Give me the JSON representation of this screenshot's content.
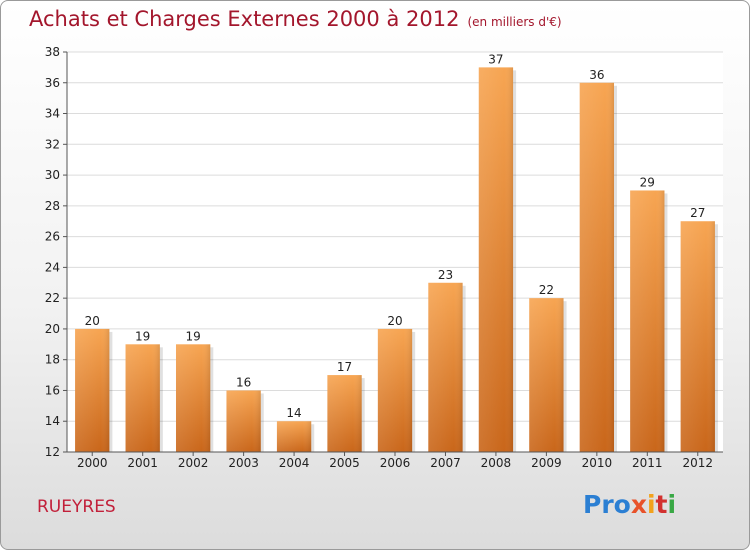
{
  "chart_data": {
    "type": "bar",
    "title": "Achats et Charges Externes 2000 à 2012",
    "unit_note": "(en milliers d'€)",
    "categories": [
      "2000",
      "2001",
      "2002",
      "2003",
      "2004",
      "2005",
      "2006",
      "2007",
      "2008",
      "2009",
      "2010",
      "2011",
      "2012"
    ],
    "values": [
      20,
      19,
      19,
      16,
      14,
      17,
      20,
      23,
      37,
      22,
      36,
      29,
      27
    ],
    "ylim": [
      12,
      38
    ],
    "yticks": [
      12,
      14,
      16,
      18,
      20,
      22,
      24,
      26,
      28,
      30,
      32,
      34,
      36,
      38
    ],
    "grid": true,
    "bar_color_top": "#f7a552",
    "bar_color_bottom": "#c9661a"
  },
  "place_name": "RUEYRES",
  "logo": {
    "text": "Proxiti",
    "parts": [
      "Pro",
      "x",
      "i",
      "t",
      "i"
    ]
  }
}
